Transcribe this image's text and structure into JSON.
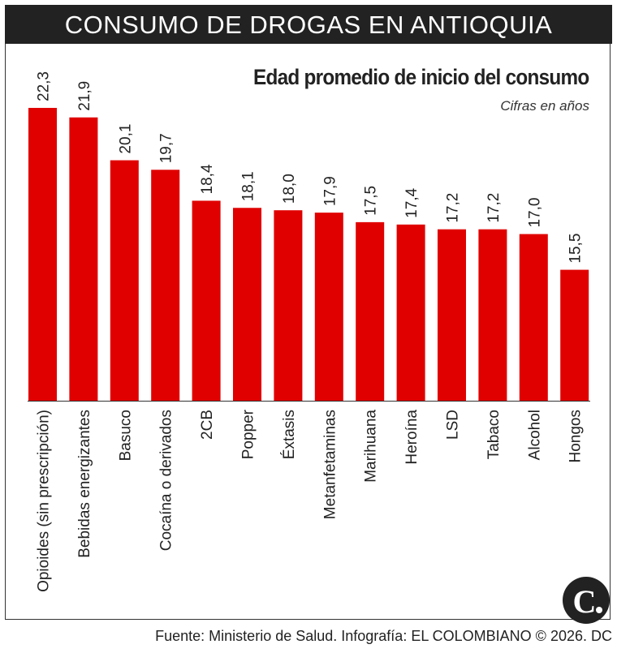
{
  "header": {
    "title": "CONSUMO DE DROGAS EN ANTIOQUIA"
  },
  "footer": {
    "source": "Fuente: Ministerio de Salud. Infografía: EL COLOMBIANO © 2026. DC",
    "logo_text": "C."
  },
  "colors": {
    "bar": "#e00000",
    "title_bg": "#222222"
  },
  "chart_data": {
    "type": "bar",
    "title": "Edad promedio de inicio del consumo",
    "subtitle": "Cifras en años",
    "categories": [
      "Opioides (sin prescripción)",
      "Bebidas energizantes",
      "Basuco",
      "Cocaína o derivados",
      "2CB",
      "Popper",
      "Éxtasis",
      "Metanfetaminas",
      "Marihuana",
      "Heroína",
      "LSD",
      "Tabaco",
      "Alcohol",
      "Hongos"
    ],
    "values": [
      22.3,
      21.9,
      20.1,
      19.7,
      18.4,
      18.1,
      18.0,
      17.9,
      17.5,
      17.4,
      17.2,
      17.2,
      17.0,
      15.5
    ],
    "value_labels": [
      "22,3",
      "21,9",
      "20,1",
      "19,7",
      "18,4",
      "18,1",
      "18,0",
      "17,9",
      "17,5",
      "17,4",
      "17,2",
      "17,2",
      "17,0",
      "15,5"
    ],
    "ylim": [
      10,
      22.3
    ],
    "grid": false,
    "legend": "none"
  }
}
